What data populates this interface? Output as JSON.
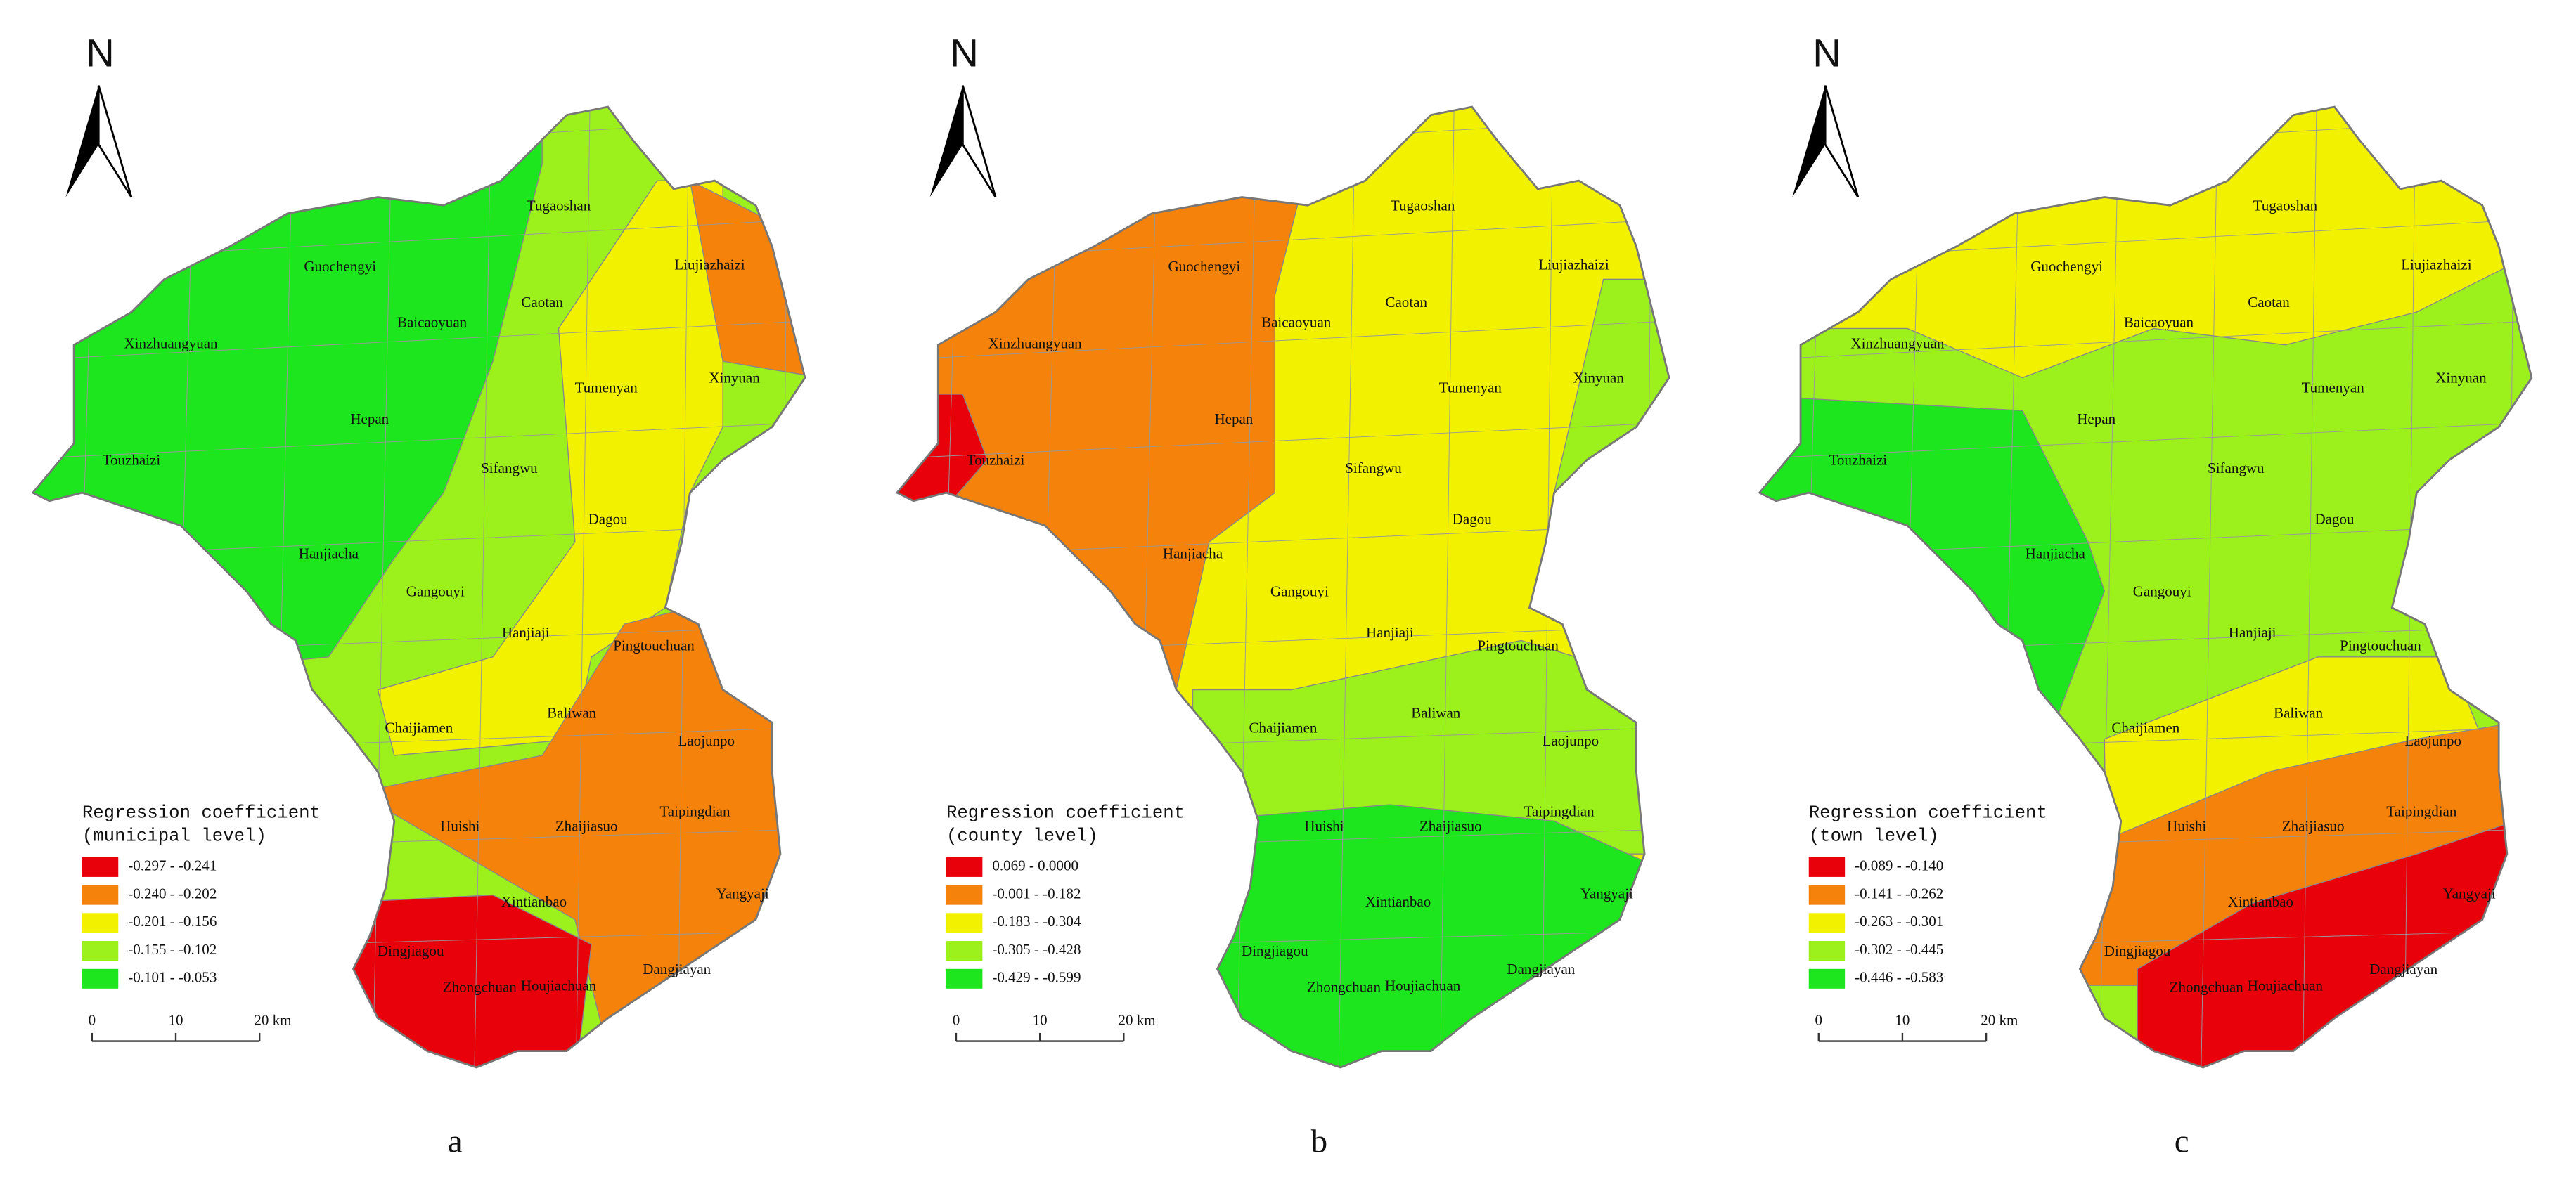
{
  "panels": [
    {
      "letter": "a",
      "north": "N",
      "legend": {
        "title": [
          "Regression coefficient",
          "(municipal level)"
        ],
        "items": [
          {
            "label": "-0.297 - -0.241",
            "color": "#e8000b"
          },
          {
            "label": "-0.240 - -0.202",
            "color": "#f5820a"
          },
          {
            "label": "-0.201 - -0.156",
            "color": "#f2f200"
          },
          {
            "label": "-0.155 - -0.102",
            "color": "#9cf01c"
          },
          {
            "label": "-0.101 - -0.053",
            "color": "#1ee61e"
          }
        ]
      },
      "scale_bar": [
        "0",
        "10",
        "20 km"
      ],
      "places": [
        "Tugaoshan",
        "Guochengyi",
        "Liujiazhaizi",
        "Caotan",
        "Baicaoyuan",
        "Xinzhuangyuan",
        "Xinyuan",
        "Tumenyan",
        "Hepan",
        "Touzhaizi",
        "Sifangwu",
        "Dagou",
        "Hanjiacha",
        "Gangouyi",
        "Hanjiaji",
        "Pingtouchuan",
        "Chaijiamen",
        "Baliwan",
        "Laojunpo",
        "Huishi",
        "Zhaijiasuo",
        "Taipingdian",
        "Xintianbao",
        "Yangyaji",
        "Dingjiagou",
        "Zhongchuan",
        "Houjiachuan",
        "Dangjiayan"
      ]
    },
    {
      "letter": "b",
      "north": "N",
      "legend": {
        "title": [
          "Regression coefficient",
          "(county level)"
        ],
        "items": [
          {
            "label": "0.069 - 0.0000",
            "color": "#e8000b"
          },
          {
            "label": "-0.001 - -0.182",
            "color": "#f5820a"
          },
          {
            "label": "-0.183 - -0.304",
            "color": "#f2f200"
          },
          {
            "label": "-0.305 - -0.428",
            "color": "#9cf01c"
          },
          {
            "label": "-0.429 - -0.599",
            "color": "#1ee61e"
          }
        ]
      },
      "scale_bar": [
        "0",
        "10",
        "20 km"
      ],
      "places": [
        "Tugaoshan",
        "Guochengyi",
        "Liujiazhaizi",
        "Caotan",
        "Baicaoyuan",
        "Xinzhuangyuan",
        "Xinyuan",
        "Tumenyan",
        "Hepan",
        "Touzhaizi",
        "Sifangwu",
        "Dagou",
        "Hanjiacha",
        "Gangouyi",
        "Hanjiaji",
        "Pingtouchuan",
        "Chaijiamen",
        "Baliwan",
        "Laojunpo",
        "Huishi",
        "Zhaijiasuo",
        "Taipingdian",
        "Xintianbao",
        "Yangyaji",
        "Dingjiagou",
        "Zhongchuan",
        "Houjiachuan",
        "Dangjiayan"
      ]
    },
    {
      "letter": "c",
      "north": "N",
      "legend": {
        "title": [
          "Regression coefficient",
          "(town level)"
        ],
        "items": [
          {
            "label": "-0.089 - -0.140",
            "color": "#e8000b"
          },
          {
            "label": "-0.141 - -0.262",
            "color": "#f5820a"
          },
          {
            "label": "-0.263 - -0.301",
            "color": "#f2f200"
          },
          {
            "label": "-0.302 - -0.445",
            "color": "#9cf01c"
          },
          {
            "label": "-0.446 - -0.583",
            "color": "#1ee61e"
          }
        ]
      },
      "scale_bar": [
        "0",
        "10",
        "20 km"
      ],
      "places": [
        "Tugaoshan",
        "Guochengyi",
        "Liujiazhaizi",
        "Caotan",
        "Baicaoyuan",
        "Xinzhuangyuan",
        "Xinyuan",
        "Tumenyan",
        "Hepan",
        "Touzhaizi",
        "Sifangwu",
        "Dagou",
        "Hanjiacha",
        "Gangouyi",
        "Hanjiaji",
        "Pingtouchuan",
        "Chaijiamen",
        "Baliwan",
        "Laojunpo",
        "Huishi",
        "Zhaijiasuo",
        "Taipingdian",
        "Xintianbao",
        "Yangyaji",
        "Dingjiagou",
        "Zhongchuan",
        "Houjiachuan",
        "Dangjiayan"
      ]
    }
  ]
}
